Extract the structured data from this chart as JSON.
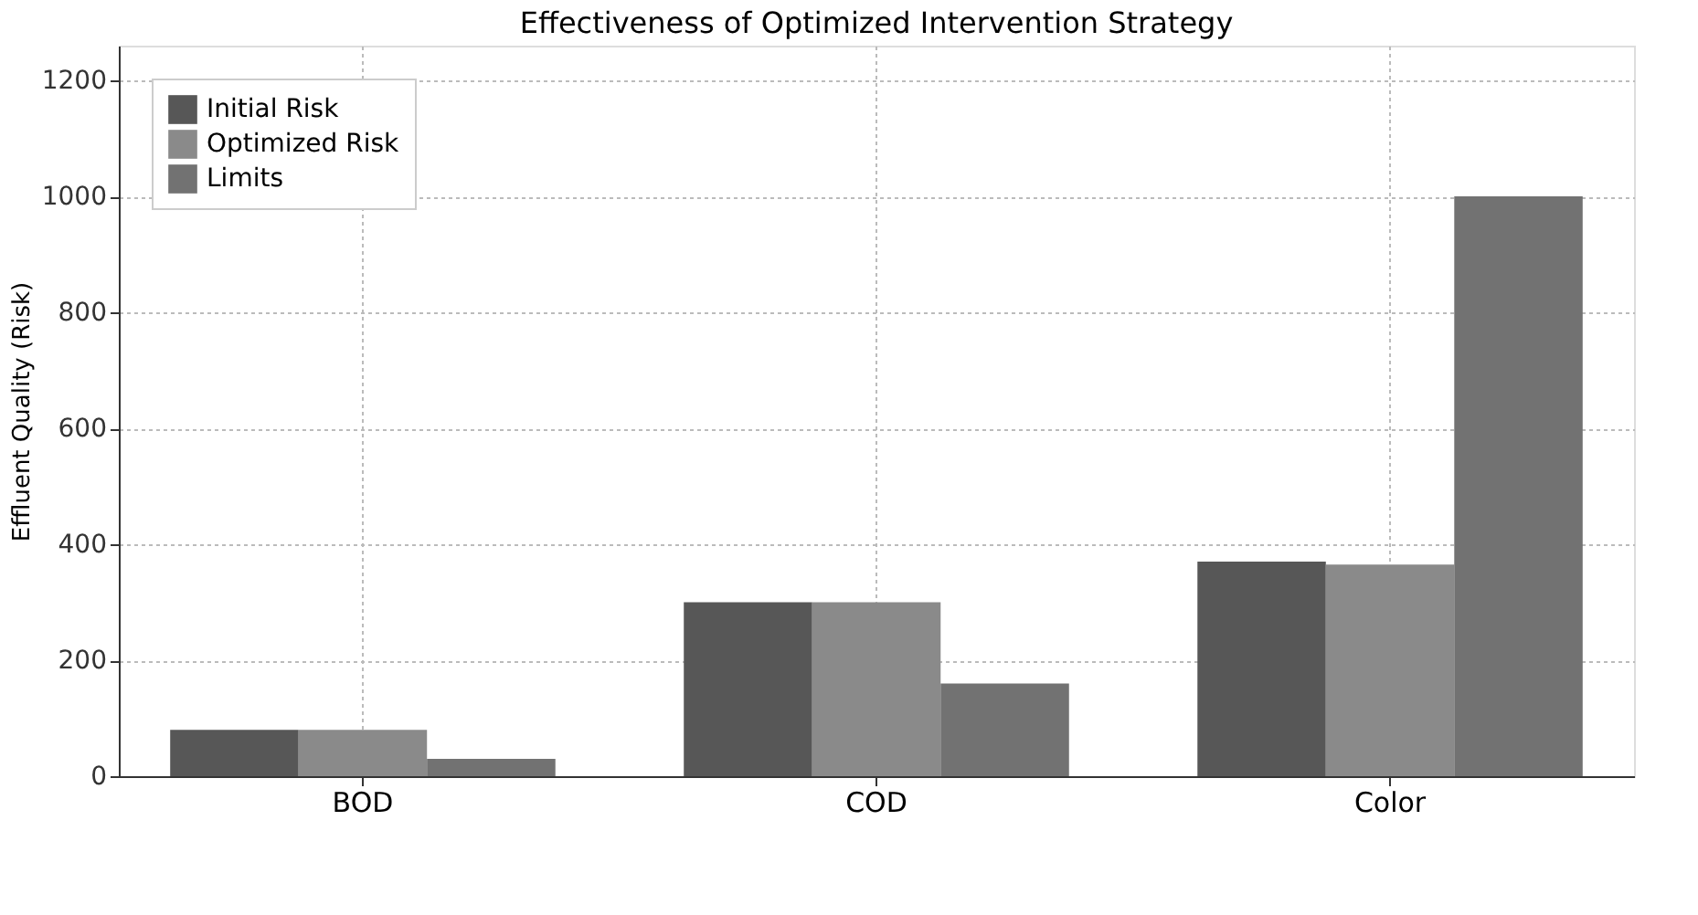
{
  "chart_data": {
    "type": "bar",
    "title": "Effectiveness of Optimized Intervention Strategy",
    "ylabel": "Effluent Quality (Risk)",
    "categories": [
      "BOD",
      "COD",
      "Color"
    ],
    "series": [
      {
        "name": "Initial Risk",
        "color": "#575757",
        "values": [
          80,
          300,
          370
        ]
      },
      {
        "name": "Optimized Risk",
        "color": "#8a8a8a",
        "values": [
          80,
          300,
          365
        ]
      },
      {
        "name": "Limits",
        "color": "#727272",
        "values": [
          30,
          160,
          1000
        ]
      }
    ],
    "ylim": [
      0,
      1260
    ],
    "yticks": [
      0,
      200,
      400,
      600,
      800,
      1000,
      1200
    ],
    "grid": true,
    "legend": "top left"
  }
}
